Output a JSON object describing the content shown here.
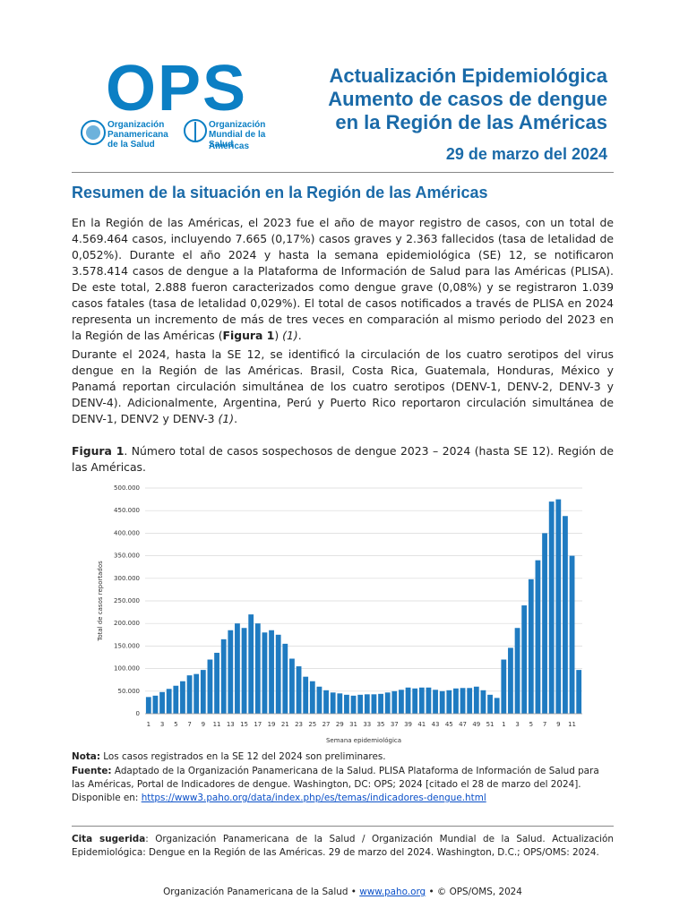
{
  "header": {
    "logo": "OPS",
    "org1": "Organización Panamericana de la Salud",
    "org2": "Organización Mundial de la Salud",
    "org2_region": "Américas",
    "title_lines": [
      "Actualización Epidemiológica",
      "Aumento de casos de dengue",
      "en la Región de las Américas"
    ],
    "date": "29 de marzo del 2024"
  },
  "section_title": "Resumen de la situación en la Región de las Américas",
  "paragraphs": [
    [
      "En la Región de las Américas, el 2023 fue el año de mayor registro de casos, con un total de 4.569.464 casos, incluyendo 7.665 (0,17%) casos graves y 2.363 fallecidos (tasa de letalidad de 0,052%). Durante el año 2024 y hasta la semana epidemiológica (SE) 12, se notificaron 3.578.414 casos de dengue a la Plataforma de Información de Salud para las Américas (PLISA). De este total, 2.888 fueron caracterizados como dengue grave (0,08%) y se registraron 1.039 casos fatales (tasa de letalidad 0,029%). El total de casos notificados a través de PLISA en 2024 representa un incremento de más de tres veces en comparación al mismo periodo del 2023 en la Región de las Américas (",
      "Figura 1",
      ") ",
      "(1)",
      "."
    ],
    [
      "Durante el 2024, hasta la SE 12, se identificó la circulación de los cuatro serotipos del virus dengue en la Región de las Américas. Brasil, Costa Rica, Guatemala, Honduras, México y Panamá reportan circulación simultánea de los cuatro serotipos (DENV-1, DENV-2, DENV-3 y DENV-4). Adicionalmente, Argentina, Perú y Puerto Rico reportaron circulación simultánea de DENV-1, DENV2 y DENV-3 ",
      "(1)",
      "."
    ]
  ],
  "figure_caption": [
    "Figura 1",
    ". Número total de casos sospechosos de dengue 2023 – 2024 (hasta SE 12). Región de las Américas."
  ],
  "chart_data": {
    "type": "bar",
    "x_label": "Semana epidemiológica",
    "y_label": "Total de casos reportados",
    "color": "#1f7bc1",
    "grid": true,
    "ylim": [
      0,
      500000
    ],
    "yticks": [
      0,
      {
        "value": 50000,
        "label": "50.000"
      },
      {
        "value": 100000,
        "label": "100.000"
      },
      {
        "value": 150000,
        "label": "150.000"
      },
      {
        "value": 200000,
        "label": "200.000"
      },
      {
        "value": 250000,
        "label": "250.000"
      },
      {
        "value": 300000,
        "label": "300.000"
      },
      {
        "value": 350000,
        "label": "350.000"
      },
      {
        "value": 400000,
        "label": "400.000"
      },
      {
        "value": 450000,
        "label": "450.000"
      },
      {
        "value": 500000,
        "label": "500.000"
      }
    ],
    "categories": [
      "1",
      null,
      "3",
      null,
      "5",
      null,
      "7",
      null,
      "9",
      null,
      "11",
      null,
      "13",
      null,
      "15",
      null,
      "17",
      null,
      "19",
      null,
      "21",
      null,
      "23",
      null,
      "25",
      null,
      "27",
      null,
      "29",
      null,
      "31",
      null,
      "33",
      null,
      "35",
      null,
      "37",
      null,
      "39",
      null,
      "41",
      null,
      "43",
      null,
      "45",
      null,
      "47",
      null,
      "49",
      null,
      "51",
      null,
      "1",
      null,
      "3",
      null,
      "5",
      null,
      "7",
      null,
      "9",
      null,
      "11",
      null
    ],
    "values": [
      37000,
      40000,
      48000,
      55000,
      62000,
      72000,
      85000,
      88000,
      97000,
      120000,
      135000,
      165000,
      185000,
      200000,
      190000,
      220000,
      200000,
      180000,
      185000,
      175000,
      155000,
      122000,
      105000,
      82000,
      72000,
      60000,
      52000,
      47000,
      45000,
      42000,
      40000,
      42000,
      43000,
      43000,
      44000,
      47000,
      50000,
      53000,
      58000,
      56000,
      58000,
      58000,
      53000,
      50000,
      52000,
      56000,
      57000,
      57000,
      60000,
      52000,
      42000,
      35000,
      120000,
      146000,
      190000,
      240000,
      298000,
      340000,
      400000,
      470000,
      475000,
      438000,
      350000,
      97000
    ]
  },
  "notes": {
    "nota_label": "Nota:",
    "nota": " Los casos registrados en la SE 12 del 2024 son preliminares.",
    "fuente_label": "Fuente:",
    "fuente": " Adaptado de la Organización Panamericana de la Salud. PLISA Plataforma de Información de Salud para las Américas, Portal de Indicadores de dengue. Washington, DC: OPS; 2024 [citado el 28 de marzo del 2024]. Disponible en: ",
    "fuente_url": "https://www3.paho.org/data/index.php/es/temas/indicadores-dengue.html"
  },
  "citation": {
    "label": "Cita sugerida",
    "text": ": Organización Panamericana de la Salud / Organización Mundial de la Salud. Actualización Epidemiológica: Dengue en la Región de las Américas. 29 de marzo del 2024. Washington, D.C.; OPS/OMS: 2024."
  },
  "footer": {
    "org": "Organización Panamericana de la Salud • ",
    "url": "www.paho.org",
    "copy": " • © OPS/OMS, 2024"
  }
}
